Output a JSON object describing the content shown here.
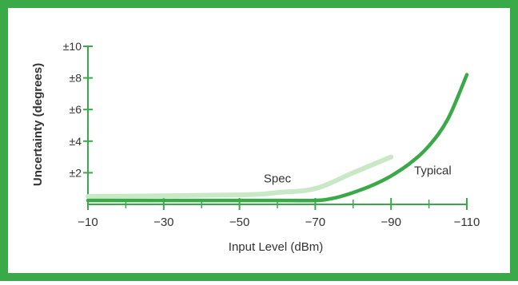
{
  "chart_data": {
    "type": "line",
    "title": "",
    "xlabel": "Input Level (dBm)",
    "ylabel": "Uncertainty (degrees)",
    "x_direction": "decreasing",
    "xlim": [
      -10,
      -110
    ],
    "ylim": [
      0,
      10
    ],
    "x_ticks": [
      -10,
      -30,
      -50,
      -70,
      -90,
      -110
    ],
    "x_minor_ticks": [
      -20,
      -40,
      -60,
      -80,
      -100
    ],
    "y_ticks": [
      2,
      4,
      6,
      8,
      10
    ],
    "y_tick_labels": [
      "±2",
      "±4",
      "±6",
      "±8",
      "±10"
    ],
    "grid": false,
    "legend": "none",
    "series": [
      {
        "name": "Spec",
        "color": "#c9e8c5",
        "points": [
          [
            -10,
            0.5
          ],
          [
            -50,
            0.6
          ],
          [
            -60,
            0.75
          ],
          [
            -70,
            1.0
          ],
          [
            -80,
            2.0
          ],
          [
            -90,
            3.0
          ]
        ]
      },
      {
        "name": "Typical",
        "color": "#3aaa48",
        "points": [
          [
            -10,
            0.25
          ],
          [
            -60,
            0.25
          ],
          [
            -70,
            0.25
          ],
          [
            -75,
            0.4
          ],
          [
            -80,
            0.75
          ],
          [
            -85,
            1.2
          ],
          [
            -90,
            1.8
          ],
          [
            -95,
            2.6
          ],
          [
            -100,
            3.7
          ],
          [
            -105,
            5.4
          ],
          [
            -110,
            8.2
          ]
        ]
      }
    ],
    "annotations": [
      {
        "text": "Spec",
        "x": -60,
        "y": 1.4
      },
      {
        "text": "Typical",
        "x": -101,
        "y": 1.9
      }
    ],
    "border_color": "#3aaa48",
    "axis_color": "#3aaa48"
  }
}
